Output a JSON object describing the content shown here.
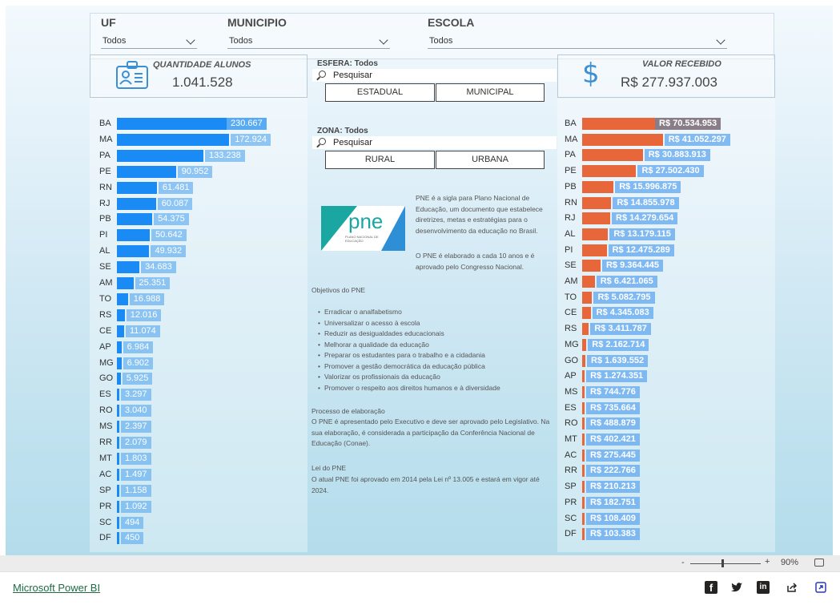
{
  "filters": {
    "uf": {
      "label": "UF",
      "value": "Todos"
    },
    "municipio": {
      "label": "MUNICIPIO",
      "value": "Todos"
    },
    "escola": {
      "label": "ESCOLA",
      "value": "Todos"
    }
  },
  "kpi_alunos": {
    "label": "QUANTIDADE ALUNOS",
    "value": "1.041.528"
  },
  "kpi_valor": {
    "label": "VALOR RECEBIDO",
    "value": "R$ 277.937.003"
  },
  "esfera": {
    "title": "ESFERA: Todos",
    "search_placeholder": "Pesquisar",
    "options": [
      "ESTADUAL",
      "MUNICIPAL"
    ]
  },
  "zona": {
    "title": "ZONA: Todos",
    "search_placeholder": "Pesquisar",
    "options": [
      "RURAL",
      "URBANA"
    ]
  },
  "pne_text": {
    "p1": "PNE é a sigla para Plano Nacional de Educação, um documento que estabelece diretrizes, metas e estratégias para o desenvolvimento da educação no Brasil.",
    "p2": "O PNE é elaborado a cada 10 anos e é aprovado pelo Congresso Nacional.",
    "objetivos_title": "Objetivos do PNE",
    "objetivos": [
      "Erradicar o analfabetismo",
      "Universalizar o acesso à escola",
      "Reduzir as desigualdades educacionais",
      "Melhorar a qualidade da educação",
      "Preparar os estudantes para o trabalho e a cidadania",
      "Promover a gestão democrática da educação pública",
      "Valorizar os profissionais da educação",
      "Promover o respeito aos direitos humanos e à diversidade"
    ],
    "processo_title": "Processo de elaboração",
    "processo_text": "O PNE é apresentado pelo Executivo e deve ser aprovado pelo Legislativo. Na sua elaboração, é considerada a participação da Conferência Nacional de Educação (Conae).",
    "lei_title": "Lei do PNE",
    "lei_text": "O atual PNE foi aprovado em 2014 pela Lei nº 13.005 e estará em vigor até 2024."
  },
  "logo": {
    "text": "pne",
    "subtitle": "PLANO NACIONAL DE EDUCAÇÃO"
  },
  "chart_data": [
    {
      "type": "bar",
      "orientation": "horizontal",
      "categories": [
        "BA",
        "MA",
        "PA",
        "PE",
        "RN",
        "RJ",
        "PB",
        "PI",
        "AL",
        "SE",
        "AM",
        "TO",
        "RS",
        "CE",
        "AP",
        "MG",
        "GO",
        "ES",
        "RO",
        "MS",
        "RR",
        "MT",
        "AC",
        "SP",
        "PR",
        "SC",
        "DF"
      ],
      "values": [
        230667,
        172924,
        133238,
        90952,
        61481,
        60087,
        54375,
        50642,
        49932,
        34683,
        25351,
        16988,
        12016,
        11074,
        6984,
        6902,
        5925,
        3297,
        3040,
        2397,
        2079,
        1803,
        1497,
        1158,
        1092,
        494,
        450
      ],
      "labels": [
        "230.667",
        "172.924",
        "133.238",
        "90.952",
        "61.481",
        "60.087",
        "54.375",
        "50.642",
        "49.932",
        "34.683",
        "25.351",
        "16.988",
        "12.016",
        "11.074",
        "6.984",
        "6.902",
        "5.925",
        "3.297",
        "3.040",
        "2.397",
        "2.079",
        "1.803",
        "1.497",
        "1.158",
        "1.092",
        "494",
        "450"
      ],
      "color": "#1a8af5"
    },
    {
      "type": "bar",
      "orientation": "horizontal",
      "categories": [
        "BA",
        "MA",
        "PA",
        "PE",
        "PB",
        "RN",
        "RJ",
        "AL",
        "PI",
        "SE",
        "AM",
        "TO",
        "CE",
        "RS",
        "MG",
        "GO",
        "AP",
        "MS",
        "ES",
        "RO",
        "MT",
        "AC",
        "RR",
        "SP",
        "PR",
        "SC",
        "DF"
      ],
      "values": [
        70534953,
        41052297,
        30883913,
        27502430,
        15996875,
        14855978,
        14279654,
        13179115,
        12475289,
        9364445,
        6421065,
        5082795,
        4345083,
        3411787,
        2162714,
        1639552,
        1274351,
        744776,
        735664,
        488879,
        402421,
        275445,
        222766,
        210213,
        182751,
        108409,
        103383
      ],
      "labels": [
        "R$ 70.534.953",
        "R$ 41.052.297",
        "R$ 30.883.913",
        "R$ 27.502.430",
        "R$ 15.996.875",
        "R$ 14.855.978",
        "R$ 14.279.654",
        "R$ 13.179.115",
        "R$ 12.475.289",
        "R$ 9.364.445",
        "R$ 6.421.065",
        "R$ 5.082.795",
        "R$ 4.345.083",
        "R$ 3.411.787",
        "R$ 2.162.714",
        "R$ 1.639.552",
        "R$ 1.274.351",
        "R$ 744.776",
        "R$ 735.664",
        "R$ 488.879",
        "R$ 402.421",
        "R$ 275.445",
        "R$ 222.766",
        "R$ 210.213",
        "R$ 182.751",
        "R$ 108.409",
        "R$ 103.383"
      ],
      "color": "#e8673a"
    }
  ],
  "bottombar": {
    "zoom_minus": "-",
    "zoom_plus": "+",
    "zoom_level": "90%",
    "zoom_fraction": 0.45
  },
  "footer": {
    "link": "Microsoft Power BI",
    "facebook": "f",
    "linkedin": "in"
  }
}
